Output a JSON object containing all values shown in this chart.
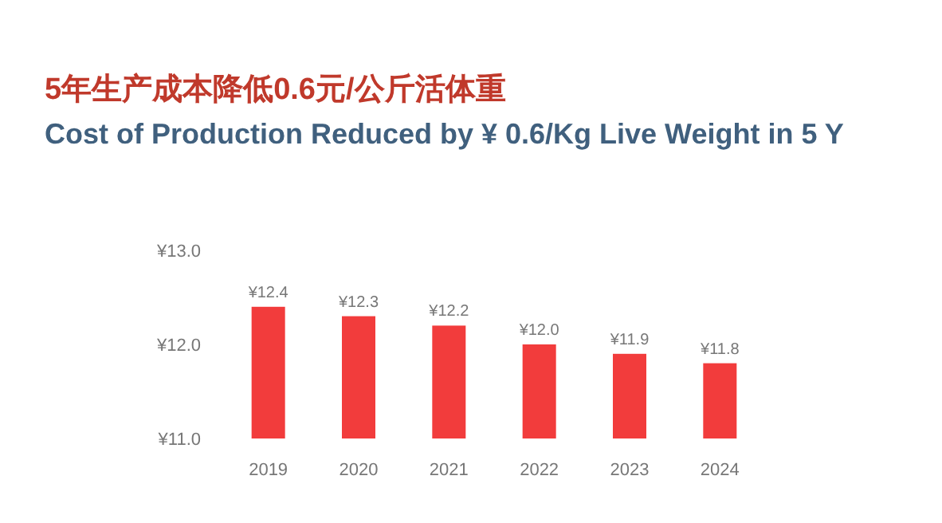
{
  "chart_data": {
    "type": "bar",
    "title": "5年生产成本降低0.6元/公斤活体重",
    "subtitle": "Cost of Production Reduced by ¥ 0.6/Kg Live Weight in 5 Y",
    "categories": [
      "2019",
      "2020",
      "2021",
      "2022",
      "2023",
      "2024"
    ],
    "values": [
      12.4,
      12.3,
      12.2,
      12.0,
      11.9,
      11.8
    ],
    "value_labels": [
      "¥12.4",
      "¥12.3",
      "¥12.2",
      "¥12.0",
      "¥11.9",
      "¥11.8"
    ],
    "color": "#f23c3c",
    "ylim": [
      11,
      13
    ],
    "yticks": [
      {
        "value": 11,
        "label": "¥11.0"
      },
      {
        "value": 12,
        "label": "¥12.0"
      },
      {
        "value": 13,
        "label": "¥13.0"
      }
    ]
  }
}
